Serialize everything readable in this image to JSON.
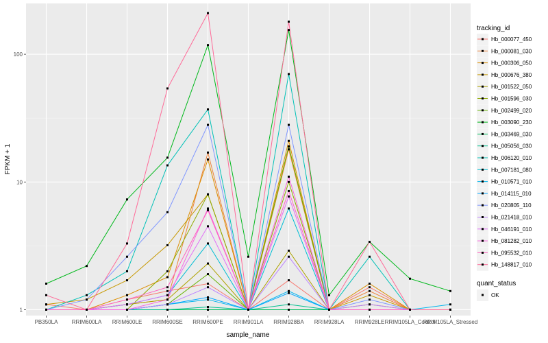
{
  "chart_data": {
    "type": "line",
    "xlabel": "sample_name",
    "ylabel": "FPKM + 1",
    "y_scale": "log10",
    "ylim": [
      0.9,
      250
    ],
    "y_ticks": [
      1,
      10,
      100
    ],
    "y_tick_labels": [
      "1",
      "10",
      "100"
    ],
    "categories": [
      "PB350LA",
      "RRIM600LA",
      "RRIM600LE",
      "RRIM600SE",
      "RRIM600PE",
      "RRIM901LA",
      "RRIM928BA",
      "RRIM928LA",
      "RRIM928LE",
      "RRIM105LA_Control",
      "RRIM105LA_Stressed"
    ],
    "legend_title": "tracking_id",
    "series": [
      {
        "name": "Hb_000077_450",
        "color": "#F8766D",
        "values": [
          1.1,
          1.0,
          1.2,
          1.4,
          1.6,
          1.0,
          1.7,
          1.0,
          1.5,
          1.0,
          1.0
        ]
      },
      {
        "name": "Hb_000081_030",
        "color": "#EC8239",
        "values": [
          1.0,
          1.0,
          1.1,
          1.2,
          17,
          1.0,
          18,
          1.0,
          1.4,
          1.0,
          1.0
        ]
      },
      {
        "name": "Hb_000306_050",
        "color": "#DB8E00",
        "values": [
          1.0,
          1.0,
          1.3,
          1.8,
          15,
          1.0,
          21,
          1.0,
          1.6,
          1.0,
          1.0
        ]
      },
      {
        "name": "Hb_000676_380",
        "color": "#C79800",
        "values": [
          1.1,
          1.2,
          1.7,
          3.2,
          8,
          1.0,
          19,
          1.0,
          1.3,
          1.0,
          1.0
        ]
      },
      {
        "name": "Hb_001522_050",
        "color": "#AEA200",
        "values": [
          1.0,
          1.0,
          1.1,
          1.2,
          2.3,
          1.0,
          2.9,
          1.0,
          1.1,
          1.0,
          1.0
        ]
      },
      {
        "name": "Hb_001596_030",
        "color": "#8FAA00",
        "values": [
          1.0,
          1.0,
          1.0,
          2.0,
          8,
          1.0,
          10,
          1.0,
          1.0,
          1.0,
          1.0
        ]
      },
      {
        "name": "Hb_002499_020",
        "color": "#64B200",
        "values": [
          1.0,
          1.0,
          1.0,
          1.1,
          1.9,
          1.0,
          19,
          1.0,
          1.0,
          1.0,
          1.0
        ]
      },
      {
        "name": "Hb_003090_230",
        "color": "#00B81B",
        "values": [
          1.6,
          2.2,
          7.3,
          15.5,
          118,
          2.6,
          155,
          1.3,
          3.4,
          1.75,
          1.4
        ]
      },
      {
        "name": "Hb_003469_030",
        "color": "#00BD5C",
        "values": [
          1.0,
          1.0,
          1.0,
          1.0,
          1.0,
          1.0,
          1.0,
          1.0,
          1.0,
          1.0,
          1.0
        ]
      },
      {
        "name": "Hb_005056_030",
        "color": "#00C08E",
        "values": [
          1.0,
          1.0,
          1.0,
          1.0,
          1.05,
          1.0,
          1.1,
          1.0,
          1.0,
          1.0,
          1.0
        ]
      },
      {
        "name": "Hb_006120_010",
        "color": "#00C1B7",
        "values": [
          1.0,
          1.3,
          2.0,
          13.5,
          37,
          1.0,
          70,
          1.0,
          2.6,
          1.0,
          1.0
        ]
      },
      {
        "name": "Hb_007181_080",
        "color": "#00BDD4",
        "values": [
          1.0,
          1.0,
          1.1,
          1.3,
          3.3,
          1.0,
          6.2,
          1.0,
          1.0,
          1.0,
          1.0
        ]
      },
      {
        "name": "Hb_010571_010",
        "color": "#00B5EE",
        "values": [
          1.0,
          1.0,
          1.0,
          1.1,
          1.2,
          1.0,
          1.4,
          1.0,
          1.0,
          1.0,
          1.1
        ]
      },
      {
        "name": "Hb_014115_010",
        "color": "#00A7FF",
        "values": [
          1.0,
          1.0,
          1.0,
          1.1,
          1.25,
          1.0,
          1.35,
          1.0,
          1.0,
          1.0,
          1.0
        ]
      },
      {
        "name": "Hb_020805_110",
        "color": "#7F96FF",
        "values": [
          1.0,
          1.2,
          2.6,
          5.8,
          28,
          1.0,
          28,
          1.0,
          1.2,
          1.0,
          1.0
        ]
      },
      {
        "name": "Hb_021418_010",
        "color": "#BC81FF",
        "values": [
          1.0,
          1.0,
          1.0,
          1.1,
          1.5,
          1.0,
          2.6,
          1.0,
          1.1,
          1.0,
          1.0
        ]
      },
      {
        "name": "Hb_046191_010",
        "color": "#E26EF7",
        "values": [
          1.0,
          1.0,
          1.1,
          1.3,
          4.5,
          1.0,
          7.7,
          1.0,
          1.0,
          1.0,
          1.0
        ]
      },
      {
        "name": "Hb_081282_010",
        "color": "#F863DF",
        "values": [
          1.0,
          1.0,
          1.0,
          1.2,
          6.2,
          1.0,
          11,
          1.0,
          1.0,
          1.0,
          1.0
        ]
      },
      {
        "name": "Hb_095532_010",
        "color": "#FF62BF",
        "values": [
          1.0,
          1.0,
          1.2,
          1.5,
          6.0,
          1.0,
          8.5,
          1.0,
          1.0,
          1.0,
          1.0
        ]
      },
      {
        "name": "Hb_148817_010",
        "color": "#FF6A98",
        "values": [
          1.3,
          1.0,
          3.3,
          54,
          210,
          1.0,
          180,
          1.0,
          3.4,
          1.0,
          1.0
        ]
      }
    ],
    "shape_legend_title": "quant_status",
    "shape_legend_items": [
      "OK"
    ],
    "panel_background": "#EBEBEB",
    "grid": true,
    "legend_position": "right"
  }
}
